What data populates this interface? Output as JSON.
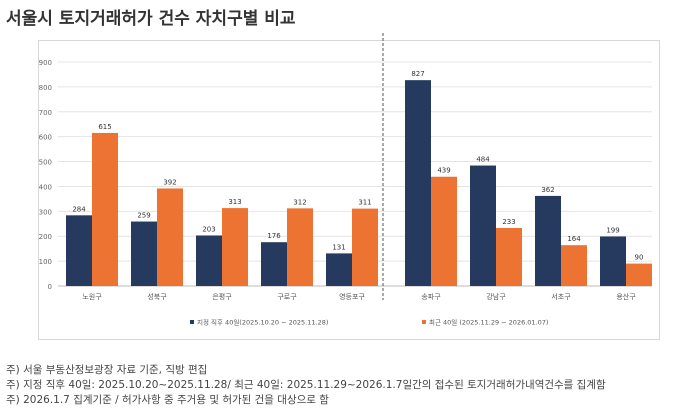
{
  "title": "서울시 토지거래허가 건수 자치구별 비교",
  "chart_data": {
    "type": "bar",
    "title": "서울시 토지거래허가 건수 자치구별 비교",
    "categories": [
      "노원구",
      "성북구",
      "은평구",
      "구로구",
      "영등포구",
      "송파구",
      "강남구",
      "서초구",
      "용산구"
    ],
    "series": [
      {
        "name": "지정 직후 40일(2025.10.20 ~ 2025.11.28)",
        "color": "#253a5e",
        "values": [
          284,
          259,
          203,
          176,
          131,
          827,
          484,
          362,
          199
        ]
      },
      {
        "name": "최근 40일 (2025.11.29 ~ 2026.01.07)",
        "color": "#ec7331",
        "values": [
          615,
          392,
          313,
          312,
          311,
          439,
          233,
          164,
          90
        ]
      }
    ],
    "yticks": [
      "0",
      "100",
      "200",
      "300",
      "400",
      "500",
      "600",
      "700",
      "800",
      "900"
    ],
    "ylim": [
      0,
      900
    ],
    "grid": true,
    "legend": "bottom",
    "divider_after_category": 4
  },
  "notes": [
    "주) 서울 부동산정보광장 자료 기준, 직방 편집",
    "주) 지정 직후 40일: 2025.10.20~2025.11.28/ 최근 40일: 2025.11.29~2026.1.7일간의  접수된 토지거래허가내역건수를 집계함",
    "주) 2026.1.7 집계기준 / 허가사항 중 주거용 및 허가된 건을 대상으로 함"
  ]
}
